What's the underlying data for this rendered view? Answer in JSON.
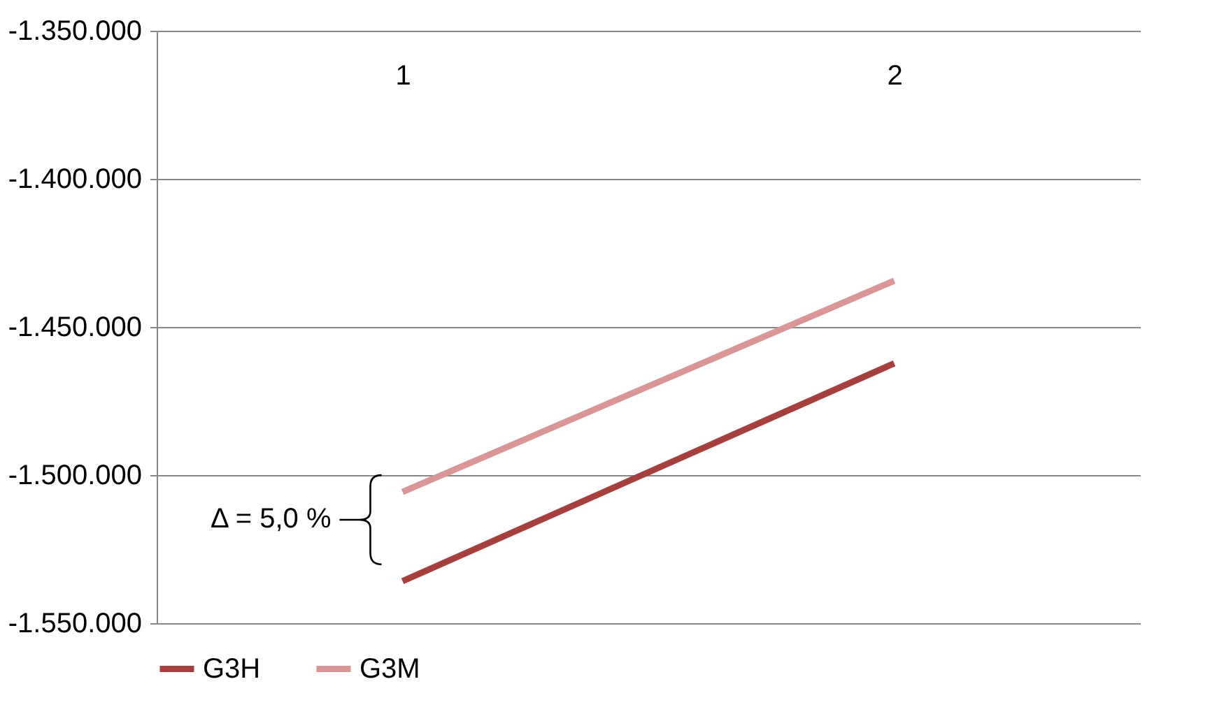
{
  "chart_data": {
    "type": "line",
    "categories": [
      "1",
      "2"
    ],
    "series": [
      {
        "name": "G3H",
        "color": "#a5403f",
        "values": [
          -1535800,
          -1462300
        ]
      },
      {
        "name": "G3M",
        "color": "#d99694",
        "values": [
          -1505700,
          -1434400
        ]
      }
    ],
    "ylim": [
      -1550000,
      -1350000
    ],
    "yticks": [
      {
        "value": -1550000,
        "label": "-1.550.000"
      },
      {
        "value": -1500000,
        "label": "-1.500.000"
      },
      {
        "value": -1450000,
        "label": "-1.450.000"
      },
      {
        "value": -1400000,
        "label": "-1.400.000"
      },
      {
        "value": -1350000,
        "label": "-1.350.000"
      }
    ],
    "grid": "y",
    "legend": "bottom",
    "marker": "none",
    "line_style": "solid",
    "annotations": [
      "Δ = 5,0 %"
    ]
  }
}
